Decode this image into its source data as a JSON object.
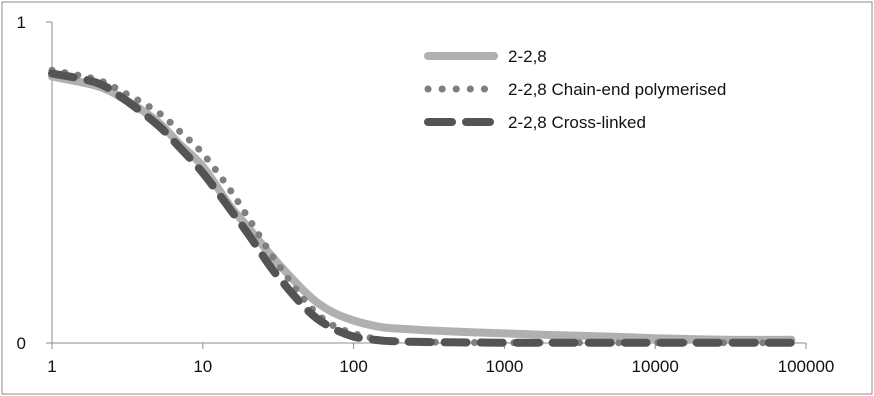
{
  "chart_data": {
    "type": "line",
    "title": "",
    "xlabel": "",
    "ylabel": "",
    "x_scale": "log",
    "xlim": [
      1,
      100000
    ],
    "ylim": [
      0,
      1
    ],
    "x_ticks": [
      1,
      10,
      100,
      1000,
      10000,
      100000
    ],
    "x_tick_labels": [
      "1",
      "10",
      "100",
      "1000",
      "10000",
      "100000"
    ],
    "y_ticks": [
      0,
      1
    ],
    "y_tick_labels": [
      "0",
      "1"
    ],
    "grid": false,
    "legend_position": "top-right",
    "series": [
      {
        "name": "2-2,8",
        "color": "#b0b0b0",
        "style": "solid-thick",
        "x": [
          1,
          2,
          3,
          5,
          7,
          10,
          15,
          20,
          30,
          50,
          70,
          100,
          150,
          200,
          300,
          500,
          1000,
          2000,
          5000,
          10000,
          30000,
          80000
        ],
        "y": [
          0.83,
          0.8,
          0.76,
          0.69,
          0.62,
          0.55,
          0.43,
          0.36,
          0.26,
          0.15,
          0.1,
          0.07,
          0.05,
          0.045,
          0.04,
          0.035,
          0.03,
          0.025,
          0.02,
          0.015,
          0.01,
          0.01
        ]
      },
      {
        "name": "2-2,8 Chain-end polymerised",
        "color": "#7f7f7f",
        "style": "dotted",
        "x": [
          1,
          2,
          3,
          5,
          7,
          10,
          15,
          20,
          30,
          50,
          70,
          100,
          150,
          200,
          300,
          500,
          1000,
          2000,
          5000,
          10000,
          30000,
          80000
        ],
        "y": [
          0.85,
          0.82,
          0.78,
          0.72,
          0.66,
          0.59,
          0.48,
          0.39,
          0.26,
          0.12,
          0.06,
          0.03,
          0.01,
          0.005,
          0.003,
          0.002,
          0.001,
          0.001,
          0.001,
          0.001,
          0.001,
          0.001
        ]
      },
      {
        "name": "2-2,8 Cross-linked",
        "color": "#545454",
        "style": "dashed",
        "x": [
          1,
          2,
          3,
          5,
          7,
          10,
          15,
          20,
          30,
          50,
          70,
          100,
          150,
          200,
          300,
          500,
          1000,
          2000,
          5000,
          10000,
          30000,
          80000
        ],
        "y": [
          0.84,
          0.81,
          0.76,
          0.68,
          0.61,
          0.53,
          0.42,
          0.34,
          0.22,
          0.1,
          0.05,
          0.02,
          0.008,
          0.005,
          0.003,
          0.002,
          0.001,
          0.001,
          0.001,
          0.001,
          0.001,
          0.001
        ]
      }
    ]
  }
}
